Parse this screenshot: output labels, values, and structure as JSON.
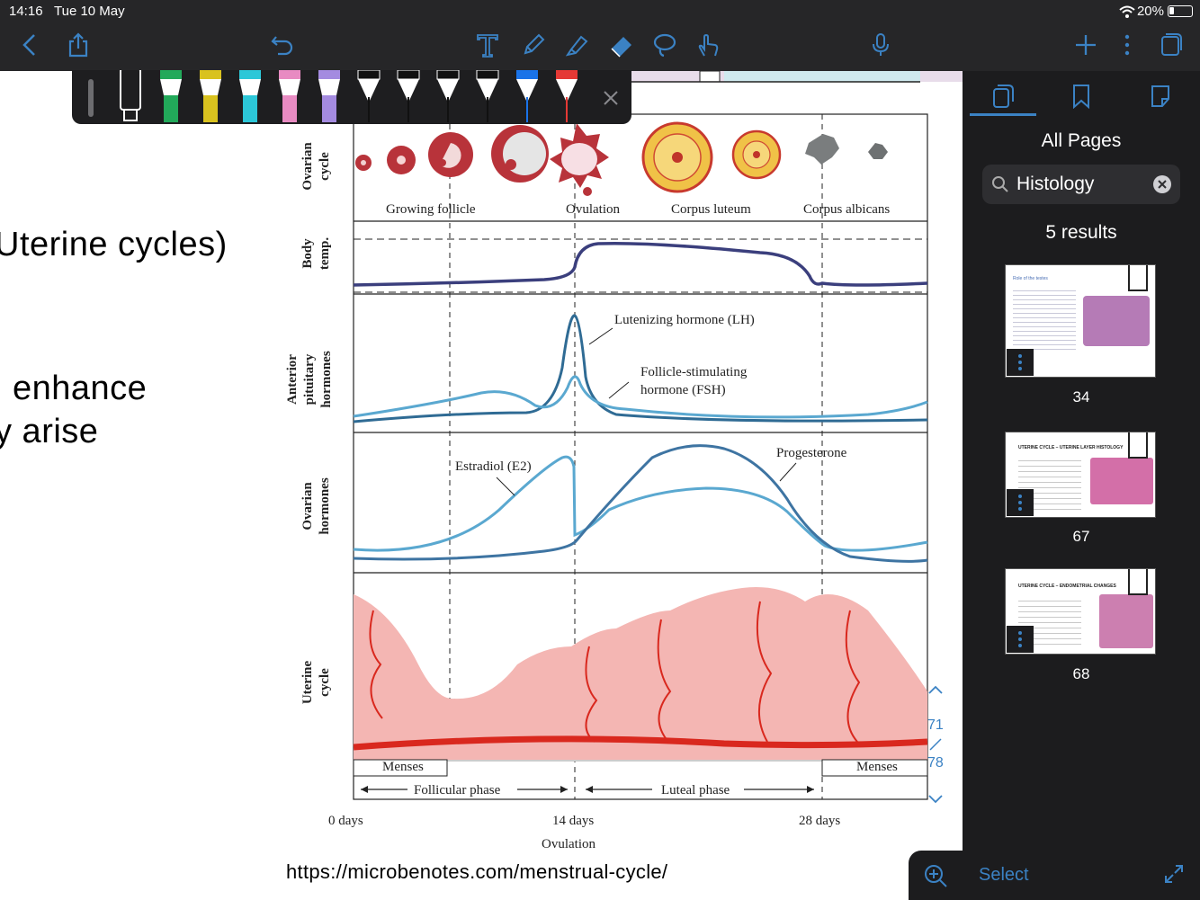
{
  "status": {
    "time": "14:16",
    "date": "Tue 10 May",
    "battery": "20%"
  },
  "toolbar": {
    "icons": [
      "back-chevron-icon",
      "share-icon",
      "undo-icon",
      "text-tool-icon",
      "pencil-icon",
      "highlighter-icon",
      "eraser-icon",
      "lasso-icon",
      "hand-touch-icon",
      "microphone-icon",
      "plus-icon",
      "more-vertical-icon",
      "pages-icon"
    ]
  },
  "palette": {
    "pens": [
      {
        "color": "#ffffff",
        "kind": "marker-outline"
      },
      {
        "color": "#22a95a",
        "kind": "highlighter"
      },
      {
        "color": "#d9c21f",
        "kind": "highlighter"
      },
      {
        "color": "#2cc7d8",
        "kind": "highlighter"
      },
      {
        "color": "#e88bc2",
        "kind": "highlighter"
      },
      {
        "color": "#a48be0",
        "kind": "highlighter"
      },
      {
        "color": "#111111",
        "kind": "pen"
      },
      {
        "color": "#111111",
        "kind": "pen"
      },
      {
        "color": "#111111",
        "kind": "pen"
      },
      {
        "color": "#111111",
        "kind": "pen"
      },
      {
        "color": "#1a73e8",
        "kind": "pen"
      },
      {
        "color": "#e53935",
        "kind": "pen"
      }
    ]
  },
  "slide": {
    "line1": "Uterine cycles)",
    "line2": "l enhance",
    "line3": "y arise"
  },
  "figure": {
    "row_labels": {
      "ovarian_cycle_1": "Ovarian",
      "ovarian_cycle_2": "cycle",
      "body_temp_1": "Body",
      "body_temp_2": "temp.",
      "anterior_1": "Anterior",
      "anterior_2": "pituitary",
      "anterior_3": "hormones",
      "ovarian_h_1": "Ovarian",
      "ovarian_h_2": "hormones",
      "uterine_1": "Uterine",
      "uterine_2": "cycle"
    },
    "stages": {
      "growing": "Growing follicle",
      "ovulation": "Ovulation",
      "corpus_luteum": "Corpus luteum",
      "corpus_albicans": "Corpus albicans"
    },
    "hormones": {
      "lh": "Lutenizing hormone (LH)",
      "fsh_1": "Follicle-stimulating",
      "fsh_2": "hormone (FSH)",
      "e2": "Estradiol (E2)",
      "progesterone": "Progesterone"
    },
    "phases": {
      "menses_left": "Menses",
      "menses_right": "Menses",
      "follicular": "Follicular phase",
      "luteal": "Luteal phase"
    },
    "axis": {
      "day0": "0 days",
      "day14": "14 days",
      "day28": "28 days",
      "ovulation": "Ovulation"
    },
    "colors": {
      "temp": "#3b3f7d",
      "lh": "#2f6b94",
      "fsh": "#5aa8d0",
      "endometrium": "#f4b6b3",
      "artery": "#d9281e"
    }
  },
  "source_url": "https://microbenotes.com/menstrual-cycle/",
  "sidebar": {
    "tabs": [
      "pages-tab-icon",
      "bookmarks-tab-icon",
      "outline-tab-icon"
    ],
    "heading": "All Pages",
    "search_value": "Histology",
    "results": "5 results",
    "thumbs": [
      {
        "page": "34",
        "title": "Role of the testes"
      },
      {
        "page": "67",
        "title": "UTERINE CYCLE – UTERINE LAYER HISTOLOGY"
      },
      {
        "page": "68",
        "title": "UTERINE CYCLE – ENDOMETRIAL CHANGES"
      }
    ],
    "select": "Select"
  },
  "page_indicator": {
    "current": "71",
    "total": "78"
  }
}
